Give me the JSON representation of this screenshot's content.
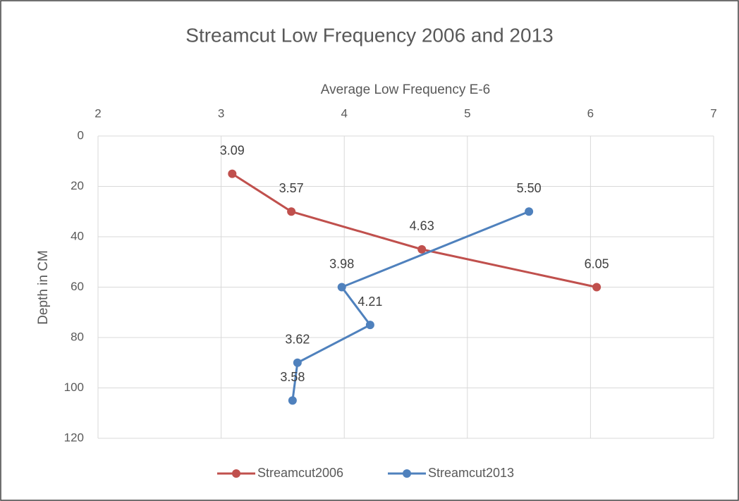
{
  "chart_data": {
    "type": "line",
    "title": "Streamcut Low Frequency 2006 and 2013",
    "xlabel": "Average Low Frequency E-6",
    "ylabel": "Depth in CM",
    "xlim": [
      2,
      7
    ],
    "xticks": [
      2,
      3,
      4,
      5,
      6,
      7
    ],
    "ylim": [
      0,
      120
    ],
    "yticks": [
      0,
      20,
      40,
      60,
      80,
      100,
      120
    ],
    "y_inverted": true,
    "x_axis_position": "top",
    "grid": true,
    "legend": "bottom",
    "series": [
      {
        "name": "Streamcut2006",
        "color": "#c0504d",
        "x": [
          3.09,
          3.57,
          4.63,
          6.05
        ],
        "values": [
          15,
          30,
          45,
          60
        ],
        "value_labels": [
          "3.09",
          "3.57",
          "4.63",
          "6.05"
        ]
      },
      {
        "name": "Streamcut2013",
        "color": "#4f81bd",
        "x": [
          5.5,
          3.98,
          4.21,
          3.62,
          3.58
        ],
        "values": [
          30,
          60,
          75,
          90,
          105
        ],
        "value_labels": [
          "5.50",
          "3.98",
          "4.21",
          "3.62",
          "3.58"
        ]
      }
    ]
  }
}
